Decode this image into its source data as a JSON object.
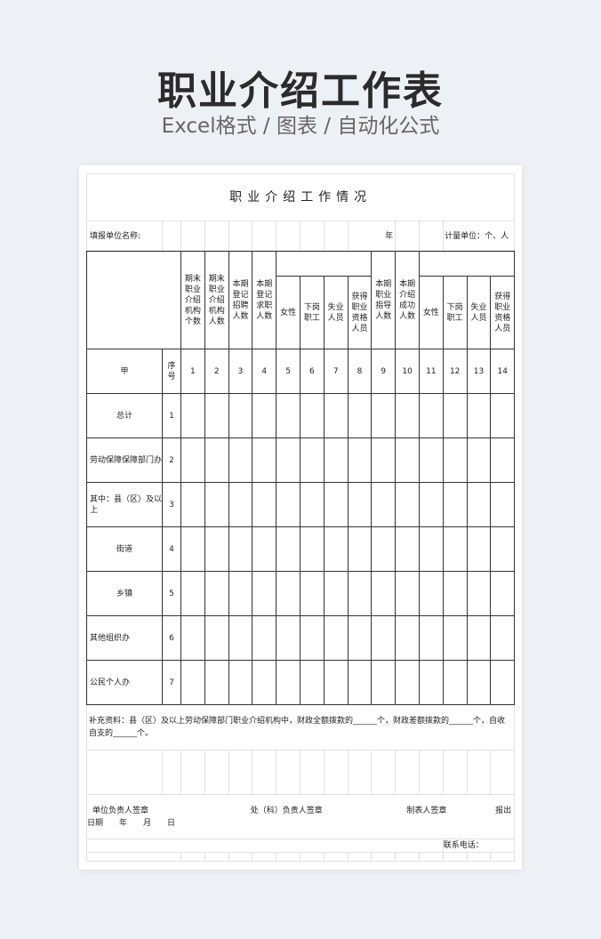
{
  "banner": {
    "title": "职业介绍工作表",
    "subtitle": "Excel格式 / 图表 / 自动化公式"
  },
  "sheet": {
    "title": "职业介绍工作情况",
    "unit_label": "填报单位名称:",
    "year_label": "年",
    "measure_unit": "计量单位：个、人",
    "headers": [
      "期末职业介绍机构个数",
      "期末职业介绍机构人数",
      "本期登记招聘人数",
      "本期登记求职人数",
      "女性",
      "下岗职工",
      "失业人员",
      "获得职业资格人员",
      "本期职业指导人数",
      "本期介绍成功人数",
      "女性",
      "下岗职工",
      "失业人员",
      "获得职业资格人员"
    ],
    "row_label_header": "甲",
    "seq_header": "序号",
    "col_numbers": [
      "1",
      "2",
      "3",
      "4",
      "5",
      "6",
      "7",
      "8",
      "9",
      "10",
      "11",
      "12",
      "13",
      "14"
    ],
    "rows": [
      {
        "label": "总计",
        "seq": "1",
        "align": "c"
      },
      {
        "label": "劳动保障保障部门办",
        "seq": "2",
        "align": "l"
      },
      {
        "label": "其中：县（区）及以上",
        "seq": "3",
        "align": "l"
      },
      {
        "label": "街道",
        "seq": "4",
        "align": "c"
      },
      {
        "label": "乡镇",
        "seq": "5",
        "align": "c"
      },
      {
        "label": "其他组织办",
        "seq": "6",
        "align": "l"
      },
      {
        "label": "公民个人办",
        "seq": "7",
        "align": "l"
      }
    ],
    "supplement": "补充资料：县（区）及以上劳动保障部门职业介绍机构中，财政全额拨款的______个，财政差额拨款的______个，自收自支的______个。",
    "sign": {
      "unit_head": "单位负责人签章",
      "dept_head": "处（科）负责人签章",
      "preparer": "制表人签章",
      "report": "报出",
      "date": "日期　　年　　月　　日"
    },
    "phone": "联系电话："
  }
}
